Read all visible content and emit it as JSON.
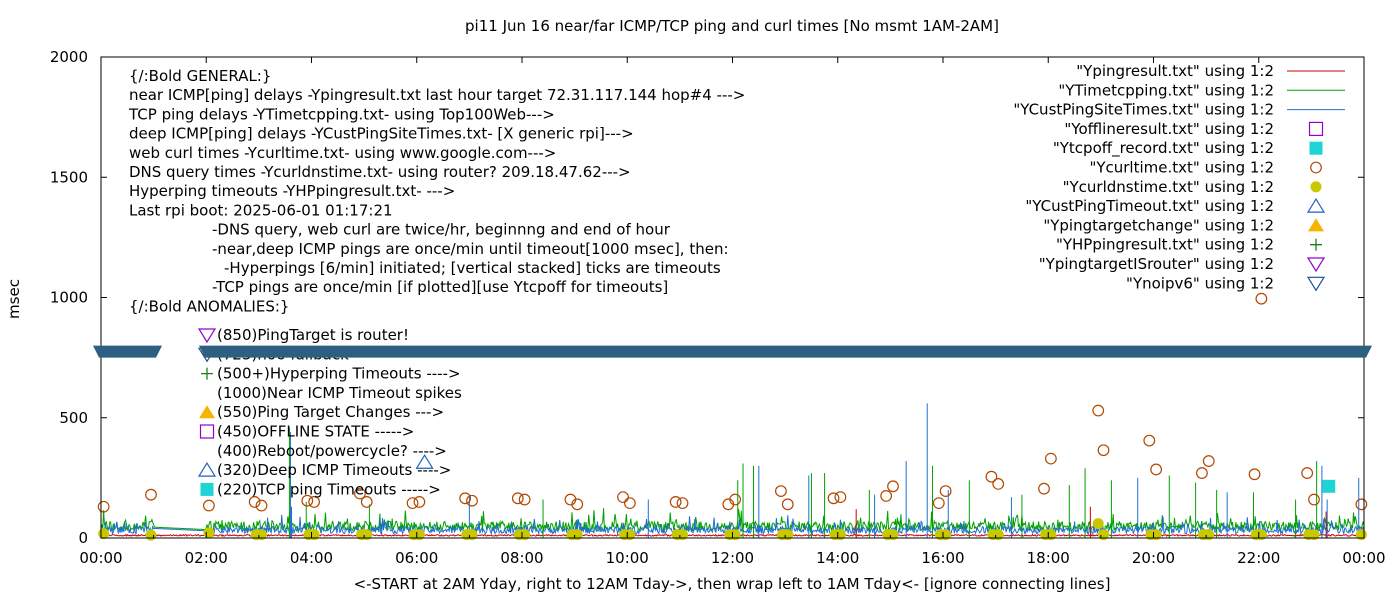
{
  "chart_data": {
    "type": "line",
    "title": "pi11 Jun 16  near/far ICMP/TCP ping and curl times [No msmt 1AM-2AM]",
    "xlabel": "<-START at 2AM Yday, right to 12AM Tday->, then wrap left to 1AM Tday<- [ignore connecting lines]",
    "ylabel": "msec",
    "xlim": [
      0,
      24
    ],
    "ylim": [
      0,
      2000
    ],
    "x_ticks": [
      "00:00",
      "02:00",
      "04:00",
      "06:00",
      "08:00",
      "10:00",
      "12:00",
      "14:00",
      "16:00",
      "18:00",
      "20:00",
      "22:00",
      "00:00"
    ],
    "y_ticks": [
      "0",
      "500",
      "1000",
      "1500",
      "2000"
    ],
    "y_tick_values": [
      0,
      500,
      1000,
      1500,
      2000
    ],
    "axis_break_msec": 775,
    "annotations": [
      "{/:Bold GENERAL:}",
      "near ICMP[ping] delays -Ypingresult.txt last hour target 72.31.117.144 hop#4 --->",
      "TCP ping delays -YTimetcpping.txt- using Top100Web--->",
      "deep ICMP[ping] delays -YCustPingSiteTimes.txt- [X generic rpi]--->",
      "web curl times -Ycurltime.txt- using www.google.com--->",
      "DNS query times -Ycurldnstime.txt- using router? 209.18.47.62--->",
      "Hyperping timeouts -YHPpingresult.txt- --->",
      "Last rpi boot: 2025-06-01 01:17:21",
      "-DNS query, web curl are twice/hr, beginnng and end of hour",
      "-near,deep ICMP pings are once/min until timeout[1000 msec], then:",
      "-Hyperpings [6/min] initiated; [vertical stacked] ticks are timeouts",
      "-TCP pings are once/min [if plotted][use Ytcpoff for timeouts]",
      "{/:Bold ANOMALIES:}"
    ],
    "anomaly_labels": [
      {
        "text": "(850)PingTarget is router!",
        "icon": "triangle-down-icon",
        "color": "#9400d3"
      },
      {
        "text": "(725)no6 fallback",
        "icon": "triangle-down-icon",
        "color": "#1f4f8f"
      },
      {
        "text": "(500+)Hyperping Timeouts ---->",
        "icon": "plus-icon",
        "color": "#1c7f1c"
      },
      {
        "text": "(1000)Near ICMP Timeout spikes",
        "icon": "",
        "color": ""
      },
      {
        "text": "(550)Ping Target Changes --->",
        "icon": "filled-triangle-icon",
        "color": "#f5b400"
      },
      {
        "text": "(450)OFFLINE STATE ----->",
        "icon": "open-square-icon",
        "color": "#9400d3"
      },
      {
        "text": "(400)Reboot/powercycle? ---->",
        "icon": "",
        "color": ""
      },
      {
        "text": "(320)Deep ICMP Timeouts ---->",
        "icon": "open-triangle-icon",
        "color": "#1f5fbf"
      },
      {
        "text": "(220)TCP ping Timeouts ----->",
        "icon": "filled-square-icon",
        "color": "#1ed4d4"
      }
    ],
    "legend_position": "top-right",
    "series": [
      {
        "name": "\"Ypingresult.txt\" using 1:2",
        "style": "line",
        "color": "#cc0000",
        "baseline": 8
      },
      {
        "name": "\"YTimetcpping.txt\" using 1:2",
        "style": "line",
        "color": "#00a000",
        "baseline": 45
      },
      {
        "name": "\"YCustPingSiteTimes.txt\" using 1:2",
        "style": "line",
        "color": "#1f6fd0",
        "baseline": 30
      },
      {
        "name": "\"Yofflineresult.txt\" using 1:2",
        "style": "open-square",
        "color": "#9400d3",
        "points": []
      },
      {
        "name": "\"Ytcpoff_record.txt\" using 1:2",
        "style": "filled-square",
        "color": "#1ed4d4",
        "points": [
          [
            23.33,
            215
          ]
        ]
      },
      {
        "name": "\"Ycurltime.txt\" using 1:2",
        "style": "open-circle",
        "color": "#b34700",
        "points": [
          [
            0.05,
            130
          ],
          [
            0.95,
            180
          ],
          [
            2.05,
            135
          ],
          [
            2.92,
            150
          ],
          [
            3.05,
            135
          ],
          [
            3.92,
            155
          ],
          [
            4.05,
            150
          ],
          [
            4.92,
            185
          ],
          [
            5.05,
            150
          ],
          [
            5.92,
            145
          ],
          [
            6.05,
            150
          ],
          [
            6.92,
            165
          ],
          [
            7.05,
            155
          ],
          [
            7.92,
            165
          ],
          [
            8.05,
            160
          ],
          [
            8.92,
            160
          ],
          [
            9.05,
            140
          ],
          [
            9.92,
            170
          ],
          [
            10.05,
            145
          ],
          [
            10.92,
            150
          ],
          [
            11.05,
            145
          ],
          [
            11.92,
            140
          ],
          [
            12.05,
            160
          ],
          [
            12.92,
            195
          ],
          [
            13.05,
            140
          ],
          [
            13.92,
            165
          ],
          [
            14.05,
            170
          ],
          [
            14.92,
            175
          ],
          [
            15.05,
            215
          ],
          [
            15.92,
            145
          ],
          [
            16.05,
            195
          ],
          [
            16.92,
            255
          ],
          [
            17.05,
            225
          ],
          [
            17.92,
            205
          ],
          [
            18.05,
            330
          ],
          [
            18.95,
            530
          ],
          [
            19.05,
            365
          ],
          [
            19.92,
            405
          ],
          [
            20.05,
            285
          ],
          [
            20.92,
            270
          ],
          [
            21.05,
            320
          ],
          [
            21.92,
            265
          ],
          [
            22.05,
            995
          ],
          [
            22.92,
            270
          ],
          [
            23.05,
            160
          ],
          [
            23.95,
            140
          ]
        ]
      },
      {
        "name": "\"Ycurldnstime.txt\" using 1:2",
        "style": "filled-circle",
        "color": "#c8c800",
        "points": [
          [
            0.05,
            18
          ],
          [
            0.95,
            12
          ],
          [
            2.05,
            22
          ],
          [
            2.95,
            14
          ],
          [
            3.05,
            14
          ],
          [
            3.95,
            14
          ],
          [
            4.05,
            14
          ],
          [
            4.95,
            14
          ],
          [
            5.05,
            14
          ],
          [
            5.95,
            14
          ],
          [
            6.05,
            14
          ],
          [
            6.95,
            14
          ],
          [
            7.05,
            14
          ],
          [
            7.95,
            14
          ],
          [
            8.05,
            14
          ],
          [
            8.95,
            14
          ],
          [
            9.05,
            14
          ],
          [
            9.95,
            14
          ],
          [
            10.05,
            14
          ],
          [
            10.95,
            14
          ],
          [
            11.05,
            14
          ],
          [
            11.95,
            14
          ],
          [
            12.05,
            14
          ],
          [
            12.95,
            14
          ],
          [
            13.05,
            14
          ],
          [
            13.95,
            14
          ],
          [
            14.05,
            14
          ],
          [
            14.95,
            14
          ],
          [
            15.05,
            14
          ],
          [
            15.95,
            14
          ],
          [
            16.05,
            14
          ],
          [
            16.95,
            14
          ],
          [
            17.05,
            14
          ],
          [
            17.95,
            14
          ],
          [
            18.05,
            14
          ],
          [
            18.95,
            60
          ],
          [
            19.05,
            14
          ],
          [
            19.95,
            14
          ],
          [
            20.05,
            14
          ],
          [
            20.95,
            14
          ],
          [
            21.05,
            14
          ],
          [
            21.95,
            14
          ],
          [
            22.05,
            14
          ],
          [
            22.95,
            14
          ],
          [
            23.05,
            14
          ],
          [
            23.95,
            14
          ]
        ]
      },
      {
        "name": "\"YCustPingTimeout.txt\" using 1:2",
        "style": "open-triangle",
        "color": "#1f5fbf",
        "points": [
          [
            6.15,
            315
          ]
        ]
      },
      {
        "name": "\"Ypingtargetchange\" using 1:2",
        "style": "filled-triangle",
        "color": "#f5b400",
        "points": []
      },
      {
        "name": "\"YHPpingresult.txt\" using 1:2",
        "style": "plus",
        "color": "#1c7f1c",
        "points": []
      },
      {
        "name": "\"YpingtargetISrouter\" using 1:2",
        "style": "open-triangle-down",
        "color": "#9400d3",
        "points": []
      },
      {
        "name": "\"Ynoipv6\" using 1:2",
        "style": "open-triangle-down",
        "color": "#1f4f8f",
        "points": []
      }
    ],
    "spikes": [
      {
        "series": 2,
        "points": [
          [
            3.6,
            440
          ],
          [
            3.62,
            130
          ],
          [
            7.0,
            180
          ],
          [
            10.4,
            160
          ],
          [
            12.5,
            300
          ],
          [
            13.45,
            260
          ],
          [
            14.7,
            180
          ],
          [
            15.3,
            320
          ],
          [
            15.7,
            560
          ],
          [
            16.1,
            200
          ],
          [
            17.3,
            170
          ],
          [
            19.7,
            250
          ],
          [
            21.4,
            190
          ],
          [
            23.2,
            300
          ],
          [
            23.3,
            160
          ],
          [
            23.9,
            250
          ]
        ]
      },
      {
        "series": 1,
        "points": [
          [
            3.58,
            460
          ],
          [
            3.9,
            150
          ],
          [
            5.1,
            140
          ],
          [
            8.4,
            160
          ],
          [
            12.1,
            240
          ],
          [
            12.2,
            310
          ],
          [
            12.4,
            300
          ],
          [
            13.5,
            270
          ],
          [
            13.75,
            270
          ],
          [
            14.6,
            200
          ],
          [
            15.8,
            300
          ],
          [
            16.5,
            240
          ],
          [
            17.5,
            180
          ],
          [
            18.4,
            220
          ],
          [
            18.7,
            290
          ],
          [
            19.2,
            240
          ],
          [
            20.3,
            260
          ],
          [
            20.8,
            230
          ],
          [
            21.2,
            200
          ],
          [
            21.9,
            190
          ],
          [
            22.7,
            160
          ],
          [
            23.1,
            320
          ]
        ]
      },
      {
        "series": 0,
        "points": [
          [
            14.35,
            120
          ],
          [
            18.8,
            130
          ],
          [
            23.28,
            110
          ]
        ]
      }
    ]
  }
}
